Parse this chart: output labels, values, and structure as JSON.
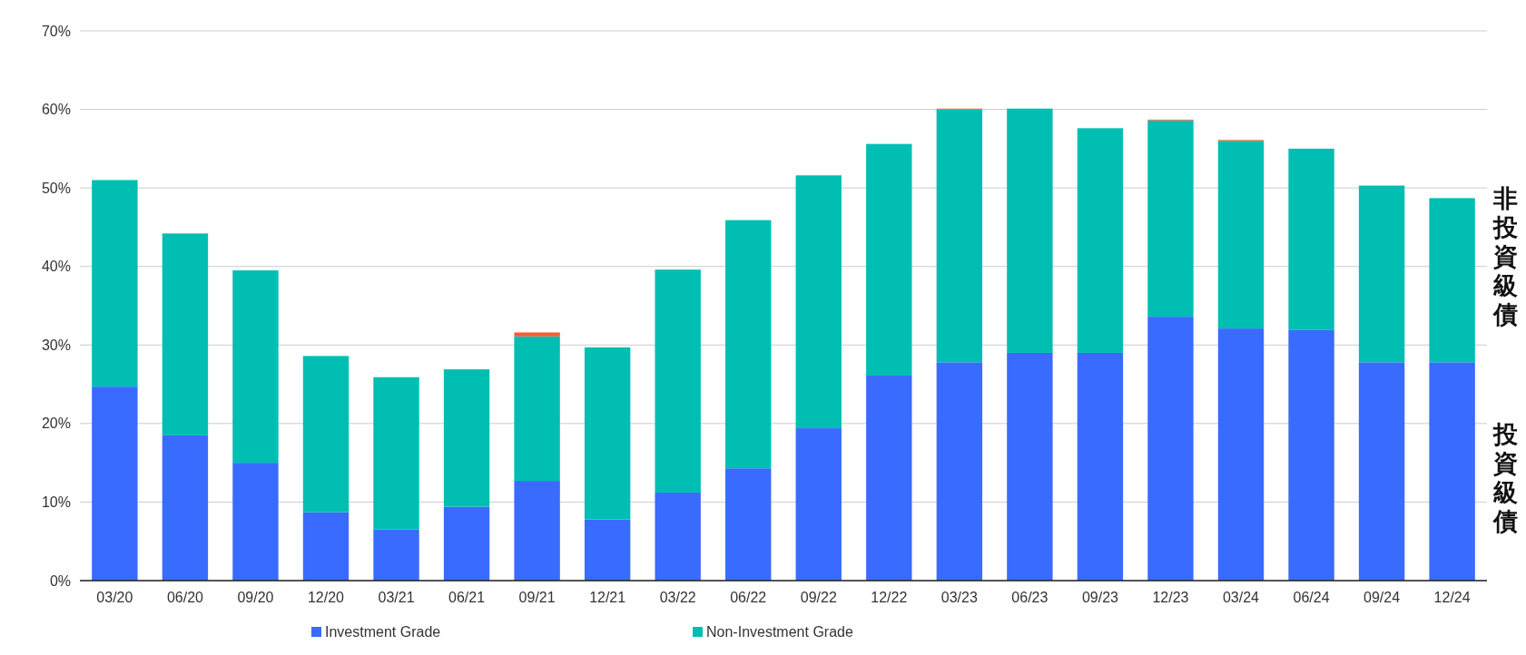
{
  "chart_data": {
    "type": "bar",
    "stacked": true,
    "categories": [
      "03/20",
      "06/20",
      "09/20",
      "12/20",
      "03/21",
      "06/21",
      "09/21",
      "12/21",
      "03/22",
      "06/22",
      "09/22",
      "12/22",
      "03/23",
      "06/23",
      "09/23",
      "12/23",
      "03/24",
      "06/24",
      "09/24",
      "12/24"
    ],
    "series": [
      {
        "name": "Investment Grade",
        "color": "#3a6bff",
        "values": [
          24.7,
          18.5,
          15.0,
          8.7,
          6.5,
          9.4,
          12.7,
          7.8,
          11.2,
          14.3,
          19.4,
          26.1,
          27.8,
          29.0,
          29.0,
          33.6,
          32.1,
          31.9,
          27.8,
          27.8
        ]
      },
      {
        "name": "Non-Investment Grade",
        "color": "#00bfb2",
        "values": [
          26.3,
          25.7,
          24.5,
          19.9,
          19.4,
          17.5,
          18.4,
          21.9,
          28.4,
          31.6,
          32.2,
          29.5,
          32.2,
          31.1,
          28.6,
          25.0,
          23.9,
          23.1,
          22.5,
          20.9
        ]
      },
      {
        "color": "#ff5a36",
        "values": [
          null,
          null,
          null,
          null,
          null,
          null,
          0.5,
          null,
          null,
          null,
          null,
          null,
          0.1,
          null,
          null,
          0.1,
          0.1,
          null,
          null,
          null
        ]
      }
    ],
    "ylim": [
      0,
      70
    ],
    "yticks": [
      {
        "value": 0,
        "label": "0%"
      },
      {
        "value": 10,
        "label": "10%"
      },
      {
        "value": 20,
        "label": "20%"
      },
      {
        "value": 30,
        "label": "30%"
      },
      {
        "value": 40,
        "label": "40%"
      },
      {
        "value": 50,
        "label": "50%"
      },
      {
        "value": 60,
        "label": "60%"
      },
      {
        "value": 70,
        "label": "70%"
      }
    ],
    "grid": "y",
    "legend": "bottom left",
    "annotations": [
      "非投資級債",
      "投資級債"
    ]
  }
}
